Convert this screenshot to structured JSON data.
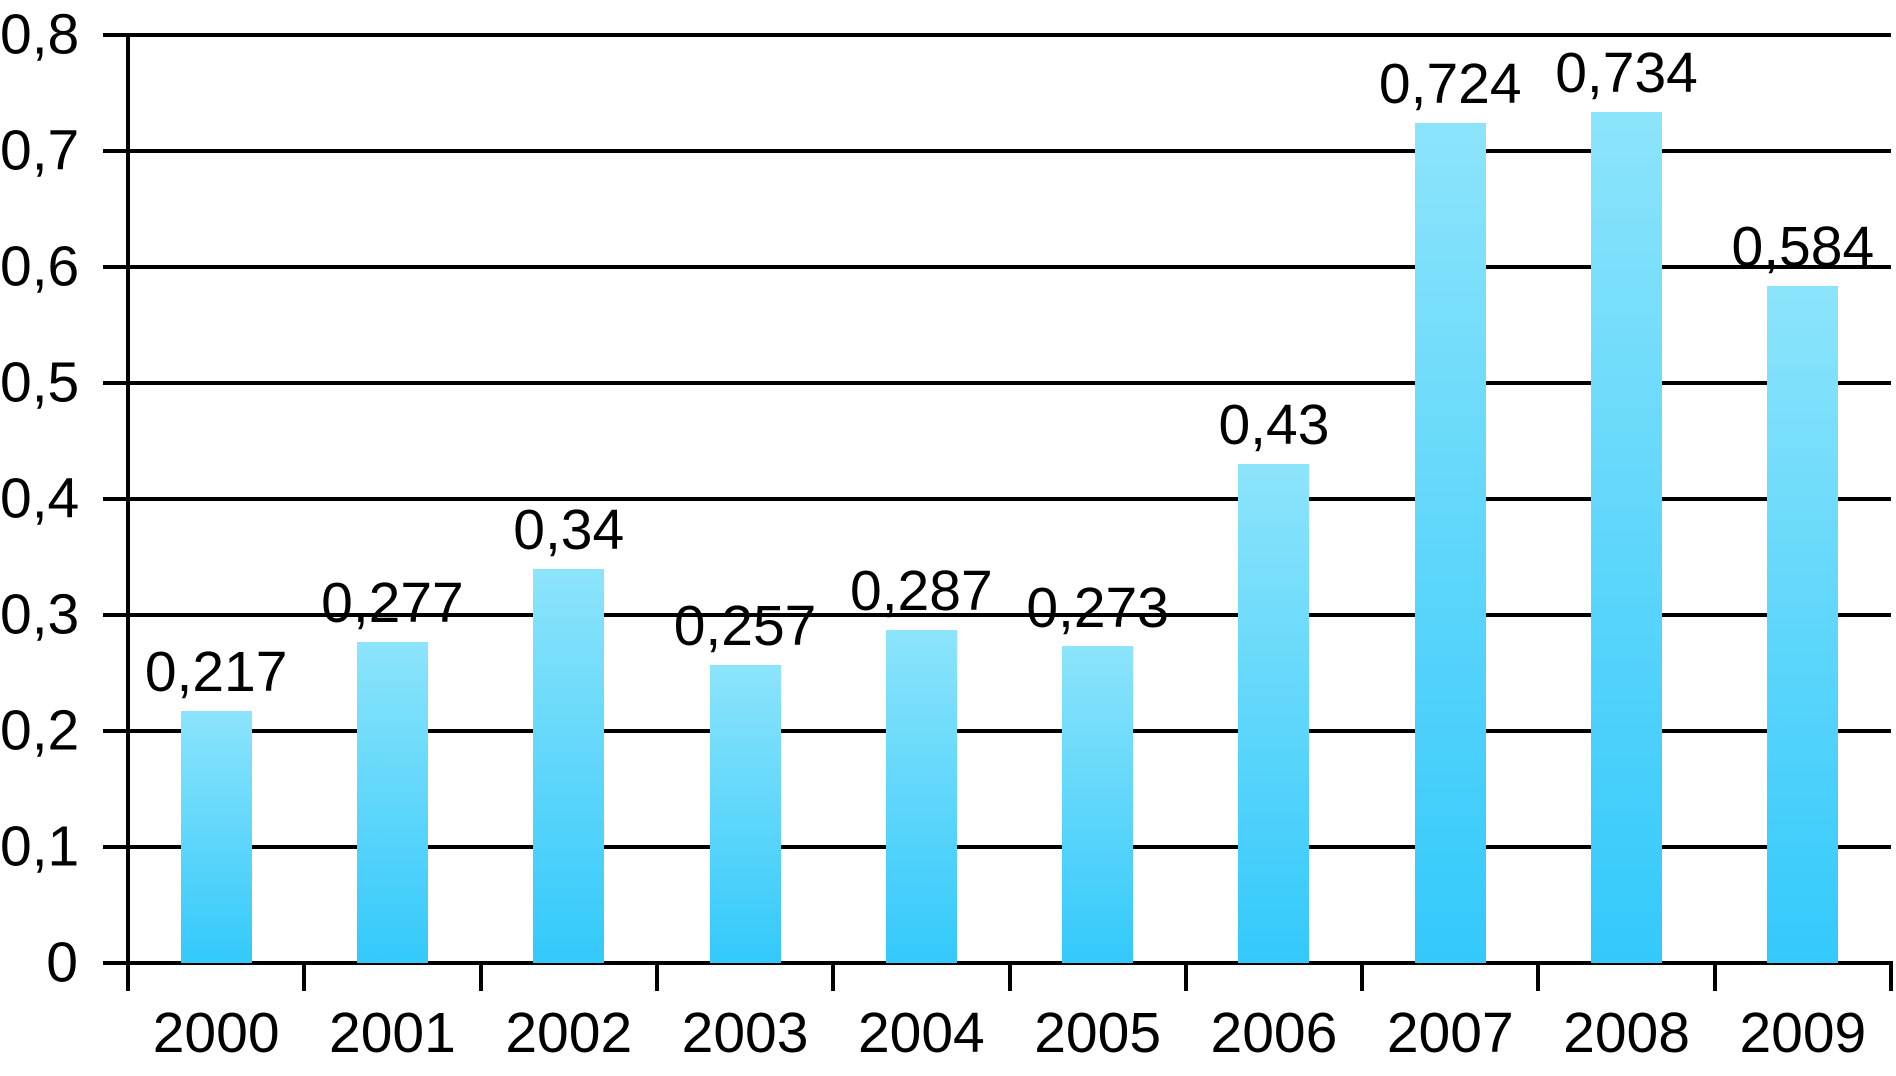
{
  "chart_data": {
    "type": "bar",
    "title": "",
    "xlabel": "",
    "ylabel": "",
    "categories": [
      "2000",
      "2001",
      "2002",
      "2003",
      "2004",
      "2005",
      "2006",
      "2007",
      "2008",
      "2009"
    ],
    "values": [
      0.217,
      0.277,
      0.34,
      0.257,
      0.287,
      0.273,
      0.43,
      0.724,
      0.734,
      0.584
    ],
    "value_labels": [
      "0,217",
      "0,277",
      "0,34",
      "0,257",
      "0,287",
      "0,273",
      "0,43",
      "0,724",
      "0,734",
      "0,584"
    ],
    "y_ticks": [
      0,
      0.1,
      0.2,
      0.3,
      0.4,
      0.5,
      0.6,
      0.7,
      0.8
    ],
    "y_tick_labels": [
      "0",
      "0,1",
      "0,2",
      "0,3",
      "0,4",
      "0,5",
      "0,6",
      "0,7",
      "0,8"
    ],
    "ylim": [
      0,
      0.8
    ],
    "grid": "horizontal",
    "legend": "none",
    "decimal_separator": ",",
    "colors": {
      "bar_gradient_top": "#8CE4FB",
      "bar_gradient_bottom": "#33C9FB",
      "axis": "#000000",
      "grid": "#000000",
      "text": "#000000",
      "background": "#FFFFFF"
    }
  }
}
